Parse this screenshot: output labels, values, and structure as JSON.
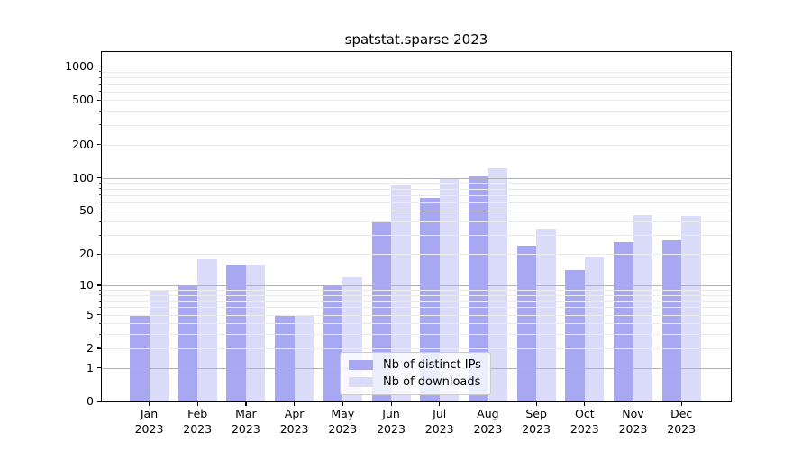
{
  "title": "spatstat.sparse 2023",
  "chart_data": {
    "type": "bar",
    "title": "spatstat.sparse 2023",
    "yscale": "log1p",
    "ylim": [
      0,
      1350
    ],
    "grid": true,
    "y_ticks": [
      0,
      1,
      2,
      5,
      10,
      20,
      50,
      100,
      200,
      500,
      1000
    ],
    "major_gridlines": [
      1,
      10,
      100,
      1000
    ],
    "minor_per_decade": [
      2,
      3,
      4,
      5,
      6,
      7,
      8,
      9
    ],
    "year": "2023",
    "months": [
      "Jan",
      "Feb",
      "Mar",
      "Apr",
      "May",
      "Jun",
      "Jul",
      "Aug",
      "Sep",
      "Oct",
      "Nov",
      "Dec"
    ],
    "series": [
      {
        "name": "Nb of distinct IPs",
        "color": "#a7a8f1",
        "values": [
          5,
          10,
          16,
          5,
          10,
          40,
          66,
          103,
          24,
          14,
          26,
          27
        ]
      },
      {
        "name": "Nb of downloads",
        "color": "#dbdcf9",
        "values": [
          9,
          18,
          16,
          5,
          12,
          85,
          97,
          121,
          34,
          19,
          46,
          45
        ]
      }
    ],
    "legend": {
      "position": "lower center"
    },
    "colors": {
      "spine": "#000000",
      "major_grid": "#b3b3b3",
      "minor_grid": "#ebebeb",
      "background": "#ffffff"
    }
  }
}
